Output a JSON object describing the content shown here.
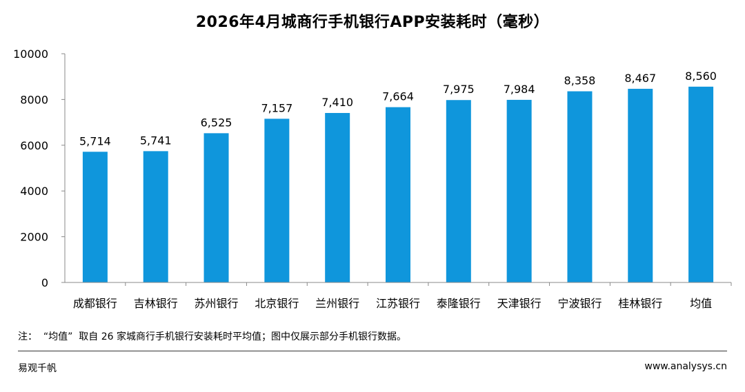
{
  "title": "2026年4月城商行手机银行APP安装耗时（毫秒）",
  "footnote": "注：  “均值”  取自 26 家城商行手机银行安装耗时平均值；图中仅展示部分手机银行数据。",
  "source": "易观千帆",
  "website": "www.analysys.cn",
  "colors": {
    "bar": "#0f96dc",
    "axis": "#888888"
  },
  "chart_data": {
    "type": "bar",
    "categories": [
      "成都银行",
      "吉林银行",
      "苏州银行",
      "北京银行",
      "兰州银行",
      "江苏银行",
      "泰隆银行",
      "天津银行",
      "宁波银行",
      "桂林银行",
      "均值"
    ],
    "values": [
      5714,
      5741,
      6525,
      7157,
      7410,
      7664,
      7975,
      7984,
      8358,
      8467,
      8560
    ],
    "data_labels": [
      "5,714",
      "5,741",
      "6,525",
      "7,157",
      "7,410",
      "7,664",
      "7,975",
      "7,984",
      "8,358",
      "8,467",
      "8,560"
    ],
    "yticks": [
      "0",
      "2000",
      "4000",
      "6000",
      "8000",
      "10000"
    ],
    "ylim": [
      0,
      10000
    ],
    "grid": false,
    "legend": false
  }
}
